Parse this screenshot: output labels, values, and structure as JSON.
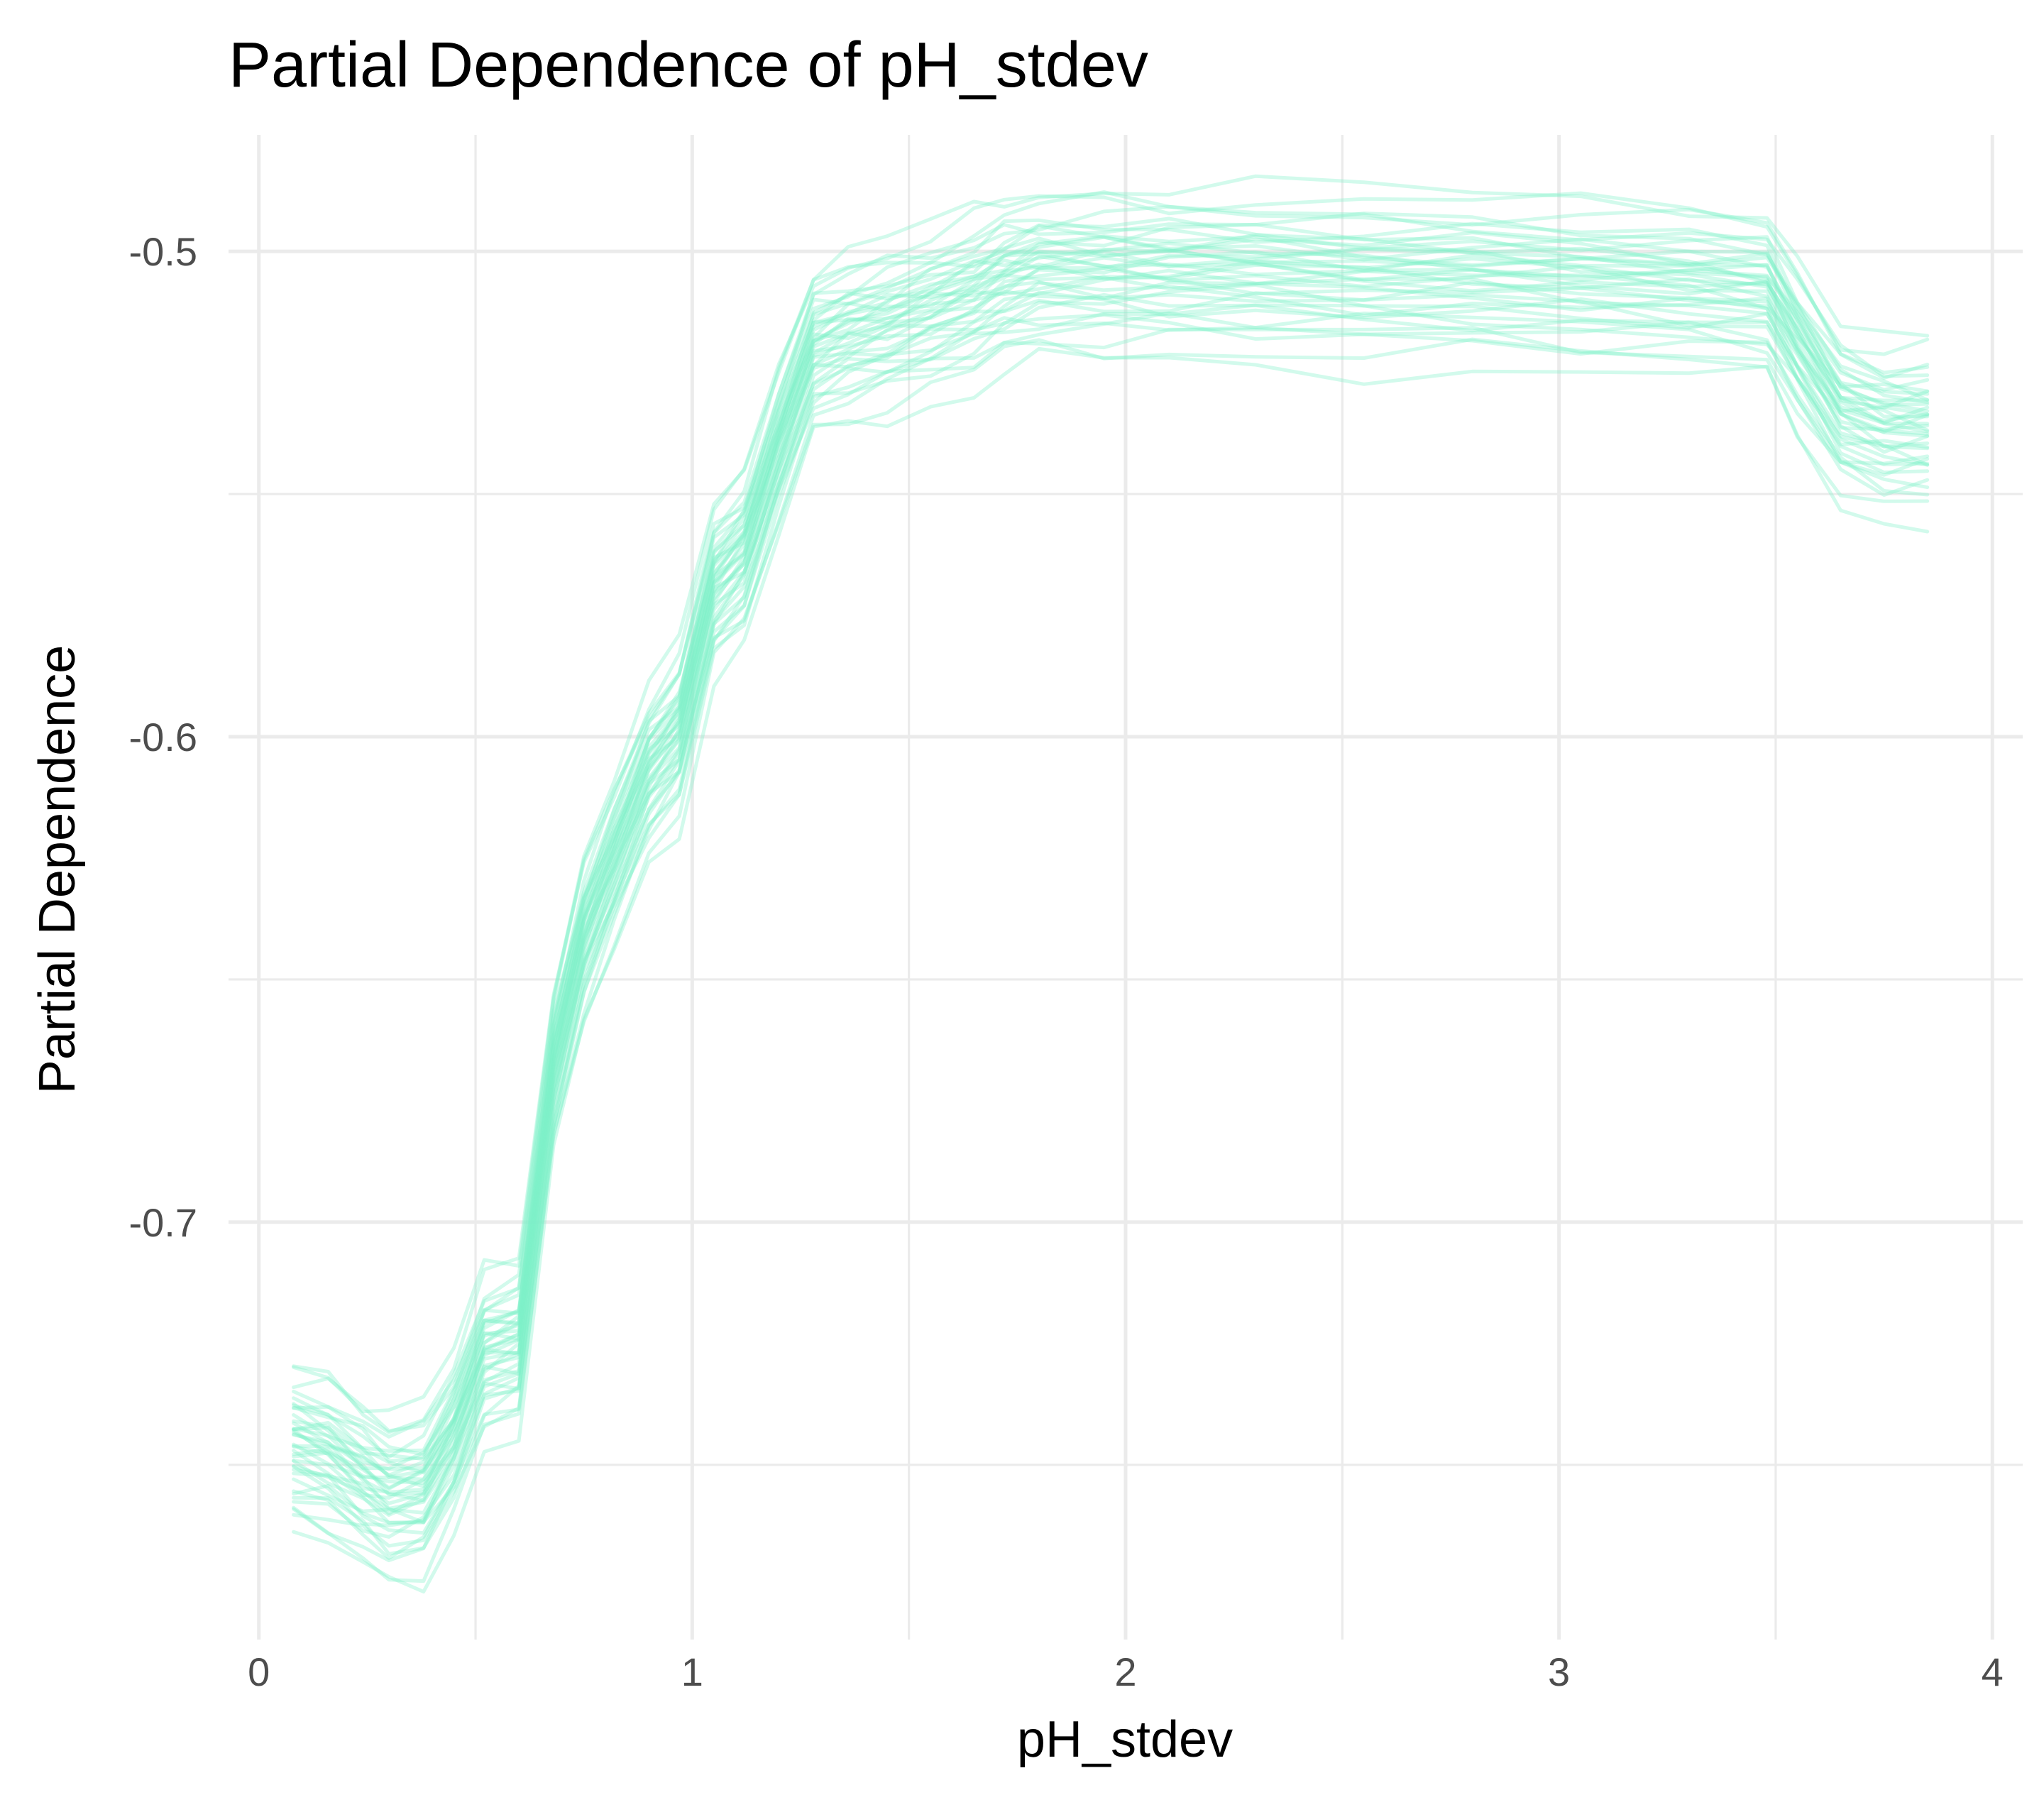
{
  "chart_data": {
    "type": "line",
    "title": "Partial Dependence of pH_stdev",
    "xlabel": "pH_stdev",
    "ylabel": "Partial Dependence",
    "xlim": [
      -0.07,
      4.07
    ],
    "ylim": [
      -0.786,
      -0.476
    ],
    "x_ticks": [
      0,
      1,
      2,
      3,
      4
    ],
    "x_tick_labels": [
      "0",
      "1",
      "2",
      "3",
      "4"
    ],
    "y_ticks": [
      -0.7,
      -0.6,
      -0.5
    ],
    "y_tick_labels": [
      "-0.7",
      "-0.6",
      "-0.5"
    ],
    "grid": true,
    "legend": "none",
    "line_color": "#7FF0C8",
    "line_opacity": 0.35,
    "x": [
      0.08,
      0.16,
      0.24,
      0.3,
      0.38,
      0.45,
      0.52,
      0.6,
      0.68,
      0.75,
      0.82,
      0.9,
      0.97,
      1.05,
      1.12,
      1.2,
      1.28,
      1.36,
      1.45,
      1.55,
      1.65,
      1.72,
      1.8,
      1.95,
      2.1,
      2.3,
      2.55,
      2.8,
      3.05,
      3.3,
      3.48,
      3.55,
      3.65,
      3.75,
      3.85
    ],
    "center_curve": [
      -0.747,
      -0.749,
      -0.754,
      -0.757,
      -0.756,
      -0.745,
      -0.728,
      -0.726,
      -0.669,
      -0.642,
      -0.626,
      -0.608,
      -0.6,
      -0.57,
      -0.563,
      -0.541,
      -0.521,
      -0.518,
      -0.516,
      -0.513,
      -0.51,
      -0.507,
      -0.505,
      -0.505,
      -0.505,
      -0.505,
      -0.506,
      -0.506,
      -0.507,
      -0.508,
      -0.509,
      -0.52,
      -0.534,
      -0.537,
      -0.537
    ],
    "series": [
      {
        "offset": -0.018
      },
      {
        "offset": -0.015
      },
      {
        "offset": -0.012
      },
      {
        "offset": -0.011
      },
      {
        "offset": -0.01
      },
      {
        "offset": -0.009
      },
      {
        "offset": -0.008
      },
      {
        "offset": -0.007
      },
      {
        "offset": -0.006
      },
      {
        "offset": -0.005
      },
      {
        "offset": -0.005
      },
      {
        "offset": -0.004
      },
      {
        "offset": -0.003
      },
      {
        "offset": -0.002
      },
      {
        "offset": -0.002
      },
      {
        "offset": -0.001
      },
      {
        "offset": 0.0
      },
      {
        "offset": 0.0
      },
      {
        "offset": 0.001
      },
      {
        "offset": 0.001
      },
      {
        "offset": 0.002
      },
      {
        "offset": 0.002
      },
      {
        "offset": 0.003
      },
      {
        "offset": 0.003
      },
      {
        "offset": 0.004
      },
      {
        "offset": 0.004
      },
      {
        "offset": 0.005
      },
      {
        "offset": 0.005
      },
      {
        "offset": 0.006
      },
      {
        "offset": 0.006
      },
      {
        "offset": 0.007
      },
      {
        "offset": 0.007
      },
      {
        "offset": 0.008
      },
      {
        "offset": 0.009
      },
      {
        "offset": 0.01
      },
      {
        "offset": 0.011
      },
      {
        "offset": 0.012
      },
      {
        "offset": 0.014
      },
      {
        "offset": 0.016
      },
      {
        "offset": 0.018
      }
    ]
  }
}
